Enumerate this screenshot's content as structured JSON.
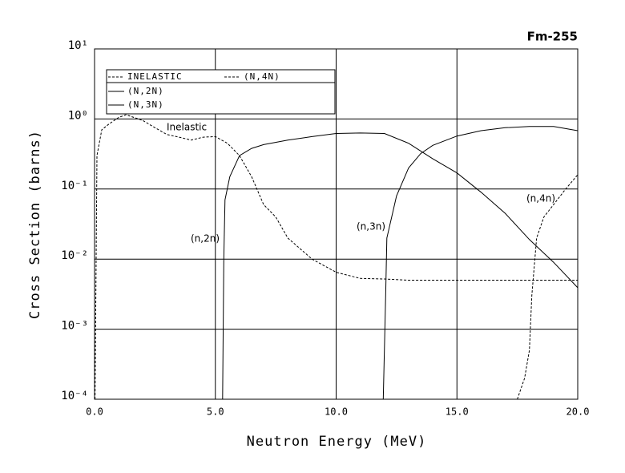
{
  "chart_data": {
    "type": "line",
    "title": "Fm-255",
    "xlabel": "Neutron Energy (MeV)",
    "ylabel": "Cross Section (barns)",
    "yscale": "log",
    "grid": true,
    "xlim": [
      0,
      20
    ],
    "ylim": [
      0.0001,
      10
    ],
    "xticks": [
      {
        "value": 0,
        "label": "0.0"
      },
      {
        "value": 5,
        "label": "5.0"
      },
      {
        "value": 10,
        "label": "10.0"
      },
      {
        "value": 15,
        "label": "15.0"
      },
      {
        "value": 20,
        "label": "20.0"
      }
    ],
    "yticks": [
      {
        "value": 0.0001,
        "label": "10⁻⁴"
      },
      {
        "value": 0.001,
        "label": "10⁻³"
      },
      {
        "value": 0.01,
        "label": "10⁻²"
      },
      {
        "value": 0.1,
        "label": "10⁻¹"
      },
      {
        "value": 1,
        "label": "10⁰"
      },
      {
        "value": 10,
        "label": "10¹"
      }
    ],
    "series": [
      {
        "name": "INELASTIC",
        "color": "#000000",
        "linestyle": "dashed",
        "x": [
          0.02,
          0.1,
          0.3,
          0.6,
          1.0,
          1.3,
          2.0,
          2.5,
          3.0,
          3.5,
          4.0,
          4.5,
          5.0,
          5.5,
          6.0,
          6.5,
          7.0,
          7.5,
          8.0,
          9.0,
          10.0,
          11.0,
          12.0,
          13.0,
          15.0,
          17.0,
          20.0
        ],
        "values": [
          0.0001,
          0.3,
          0.7,
          0.85,
          1.05,
          1.15,
          0.95,
          0.75,
          0.6,
          0.55,
          0.5,
          0.55,
          0.56,
          0.45,
          0.3,
          0.15,
          0.06,
          0.04,
          0.02,
          0.01,
          0.0065,
          0.0053,
          0.0052,
          0.005,
          0.005,
          0.005,
          0.005
        ]
      },
      {
        "name": "(N,2N)",
        "color": "#000000",
        "linestyle": "solid",
        "x": [
          5.3,
          5.35,
          5.4,
          5.6,
          6.0,
          6.5,
          7.0,
          8.0,
          9.0,
          10.0,
          11.0,
          12.0,
          13.0,
          14.0,
          15.0,
          16.0,
          17.0,
          18.0,
          19.0,
          20.0
        ],
        "values": [
          0.0001,
          0.01,
          0.07,
          0.15,
          0.3,
          0.38,
          0.43,
          0.5,
          0.56,
          0.62,
          0.63,
          0.62,
          0.45,
          0.27,
          0.17,
          0.09,
          0.045,
          0.019,
          0.009,
          0.0039
        ]
      },
      {
        "name": "(N,3N)",
        "color": "#000000",
        "linestyle": "solid",
        "x": [
          11.95,
          12.05,
          12.1,
          12.5,
          13.0,
          13.5,
          14.0,
          15.0,
          16.0,
          17.0,
          18.0,
          19.0,
          20.0
        ],
        "values": [
          0.0001,
          0.003,
          0.02,
          0.08,
          0.2,
          0.32,
          0.42,
          0.57,
          0.68,
          0.75,
          0.78,
          0.78,
          0.68
        ]
      },
      {
        "name": "(N,4N)",
        "color": "#000000",
        "linestyle": "dashed",
        "x": [
          17.5,
          17.8,
          18.0,
          18.1,
          18.3,
          18.6,
          19.0,
          19.5,
          20.0
        ],
        "values": [
          0.0001,
          0.0002,
          0.0005,
          0.003,
          0.02,
          0.04,
          0.06,
          0.1,
          0.16
        ]
      }
    ],
    "annotations": [
      "Inelastic",
      "(n,2n)",
      "(n,3n)",
      "(n,4n)"
    ]
  }
}
